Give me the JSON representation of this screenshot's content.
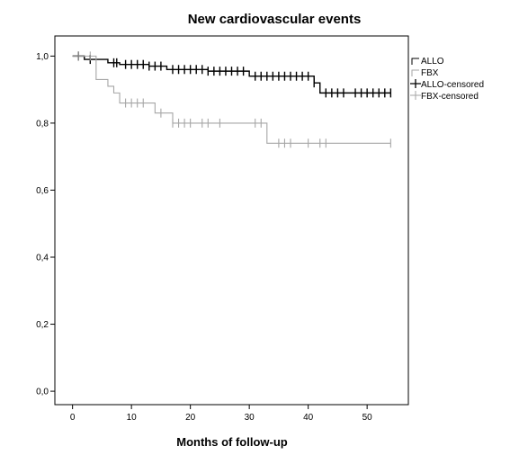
{
  "chart_data": {
    "type": "line",
    "subtype": "kaplan-meier",
    "title": "New cardiovascular events",
    "xlabel": "Months of follow-up",
    "ylabel": "",
    "xlim": [
      -3,
      57
    ],
    "ylim": [
      -0.04,
      1.06
    ],
    "x_ticks": [
      0,
      10,
      20,
      30,
      40,
      50
    ],
    "y_ticks": [
      0.0,
      0.2,
      0.4,
      0.6,
      0.8,
      1.0
    ],
    "x_tick_labels": [
      "0",
      "10",
      "20",
      "30",
      "40",
      "50"
    ],
    "y_tick_labels": [
      "0,0",
      "0,2",
      "0,4",
      "0,6",
      "0,8",
      "1,0"
    ],
    "grid": false,
    "legend_position": "right",
    "legend": [
      "ALLO",
      "FBX",
      "ALLO-censored",
      "FBX-censored"
    ],
    "series": [
      {
        "name": "ALLO",
        "color": "#000000",
        "steps": [
          [
            0,
            1.0
          ],
          [
            2,
            0.99
          ],
          [
            6,
            0.98
          ],
          [
            8,
            0.975
          ],
          [
            13,
            0.97
          ],
          [
            16,
            0.96
          ],
          [
            23,
            0.955
          ],
          [
            30,
            0.94
          ],
          [
            41,
            0.92
          ],
          [
            42,
            0.89
          ],
          [
            54,
            0.89
          ]
        ],
        "censored": [
          1,
          3,
          7,
          7.5,
          9,
          10,
          11,
          12,
          13,
          14,
          15,
          17,
          18,
          19,
          20,
          21,
          22,
          23,
          24,
          25,
          26,
          27,
          28,
          29,
          31,
          32,
          33,
          34,
          35,
          36,
          37,
          38,
          39,
          40,
          41,
          43,
          44,
          45,
          46,
          48,
          49,
          50,
          51,
          52,
          53,
          54
        ]
      },
      {
        "name": "FBX",
        "color": "#a6a6a6",
        "steps": [
          [
            0,
            1.0
          ],
          [
            4,
            0.93
          ],
          [
            6,
            0.91
          ],
          [
            7,
            0.89
          ],
          [
            8,
            0.86
          ],
          [
            14,
            0.83
          ],
          [
            17,
            0.8
          ],
          [
            33,
            0.74
          ],
          [
            54,
            0.74
          ]
        ],
        "censored": [
          1,
          3,
          9,
          10,
          11,
          12,
          15,
          17,
          18,
          19,
          20,
          22,
          23,
          25,
          31,
          32,
          35,
          36,
          37,
          40,
          42,
          43,
          54
        ]
      }
    ]
  }
}
